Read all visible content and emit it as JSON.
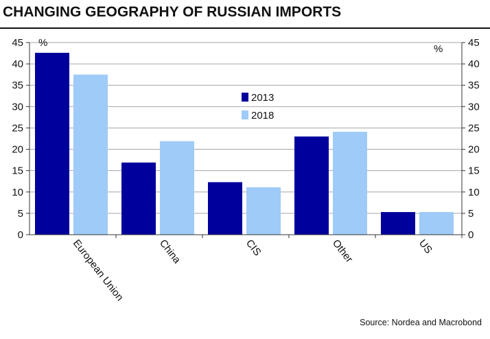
{
  "header": {
    "title": "CHANGING GEOGRAPHY OF RUSSIAN IMPORTS"
  },
  "footer": {
    "source": "Source: Nordea and Macrobond"
  },
  "colors": {
    "series_2013": "#00009c",
    "series_2018": "#9ecbf7",
    "grid": "#a6a6a6",
    "axis": "#333333"
  },
  "chart_data": {
    "type": "bar",
    "title": "CHANGING GEOGRAPHY OF RUSSIAN IMPORTS",
    "categories": [
      "European Union",
      "China",
      "CIS",
      "Other",
      "US"
    ],
    "series": [
      {
        "name": "2013",
        "values": [
          42.6,
          16.9,
          12.3,
          23.0,
          5.3
        ]
      },
      {
        "name": "2018",
        "values": [
          37.5,
          21.9,
          11.1,
          24.1,
          5.3
        ]
      }
    ],
    "ylim": [
      0,
      45
    ],
    "yticks": [
      0,
      5,
      10,
      15,
      20,
      25,
      30,
      35,
      40,
      45
    ],
    "ylabel_left": "%",
    "ylabel_right": "%",
    "grid": true,
    "legend": "center-top"
  }
}
